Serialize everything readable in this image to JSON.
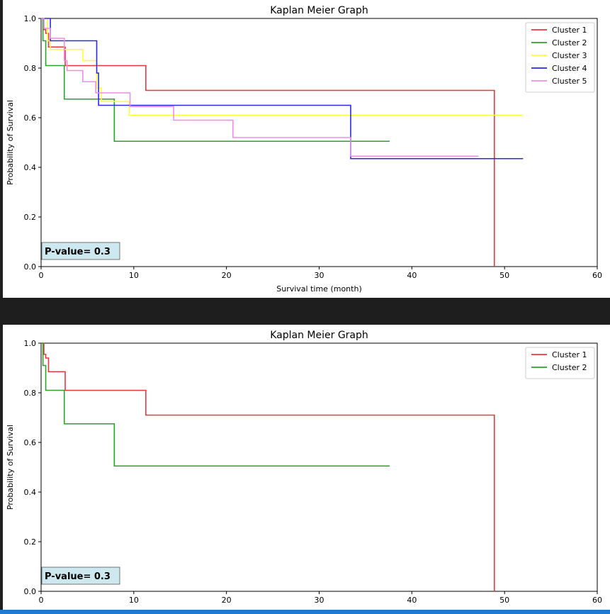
{
  "chart_data": [
    {
      "type": "line",
      "step": true,
      "title": "Kaplan Meier Graph",
      "xlabel": "Survival time (month)",
      "ylabel": "Probability of Survival",
      "xlim": [
        0,
        60
      ],
      "ylim": [
        0,
        1.0
      ],
      "xticks": [
        "0",
        "10",
        "20",
        "30",
        "40",
        "50",
        "60"
      ],
      "yticks": [
        "0.0",
        "0.2",
        "0.4",
        "0.6",
        "0.8",
        "1.0"
      ],
      "legend_position": "top-right",
      "annotation": "P-value= 0.3",
      "series": [
        {
          "name": "Cluster 1",
          "color": "#e8383d",
          "x": [
            0,
            0.3,
            0.5,
            0.8,
            1.1,
            2.6,
            11.3,
            48.9,
            48.9
          ],
          "y": [
            1.0,
            0.955,
            0.94,
            0.885,
            0.885,
            0.81,
            0.71,
            0.71,
            0.0
          ]
        },
        {
          "name": "Cluster 2",
          "color": "#2ca02c",
          "x": [
            0,
            0.2,
            0.5,
            2.5,
            7.9,
            37.6
          ],
          "y": [
            1.0,
            0.91,
            0.81,
            0.675,
            0.505,
            0.505
          ]
        },
        {
          "name": "Cluster 3",
          "color": "#ffff33",
          "x": [
            0,
            0.7,
            1.0,
            4.5,
            6.0,
            6.5,
            9.5,
            52.0
          ],
          "y": [
            1.0,
            0.91,
            0.875,
            0.83,
            0.72,
            0.665,
            0.61,
            0.61
          ]
        },
        {
          "name": "Cluster 4",
          "color": "#2a2ae8",
          "x": [
            0,
            1.0,
            6.0,
            6.2,
            33.4,
            52.0
          ],
          "y": [
            1.0,
            0.91,
            0.78,
            0.65,
            0.435,
            0.435
          ]
        },
        {
          "name": "Cluster 5",
          "color": "#ee8ee8",
          "x": [
            0,
            0.3,
            1.0,
            2.5,
            2.8,
            4.5,
            5.9,
            9.6,
            14.3,
            20.7,
            33.4,
            47.2
          ],
          "y": [
            1.0,
            0.96,
            0.92,
            0.83,
            0.79,
            0.745,
            0.7,
            0.645,
            0.59,
            0.52,
            0.445,
            0.445
          ]
        }
      ]
    },
    {
      "type": "line",
      "step": true,
      "title": "Kaplan Meier Graph",
      "xlabel": "Survival time (month)",
      "ylabel": "Probability of Survival",
      "xlim": [
        0,
        60
      ],
      "ylim": [
        0,
        1.0
      ],
      "xticks": [
        "0",
        "10",
        "20",
        "30",
        "40",
        "50",
        "60"
      ],
      "yticks": [
        "0.0",
        "0.2",
        "0.4",
        "0.6",
        "0.8",
        "1.0"
      ],
      "legend_position": "top-right",
      "annotation": "P-value= 0.3",
      "series": [
        {
          "name": "Cluster 1",
          "color": "#e8383d",
          "x": [
            0,
            0.3,
            0.5,
            0.8,
            1.1,
            2.6,
            11.3,
            48.9,
            48.9
          ],
          "y": [
            1.0,
            0.955,
            0.94,
            0.885,
            0.885,
            0.81,
            0.71,
            0.71,
            0.0
          ]
        },
        {
          "name": "Cluster 2",
          "color": "#2ca02c",
          "x": [
            0,
            0.2,
            0.5,
            2.5,
            7.9,
            37.6
          ],
          "y": [
            1.0,
            0.91,
            0.81,
            0.675,
            0.505,
            0.505
          ]
        }
      ]
    }
  ]
}
